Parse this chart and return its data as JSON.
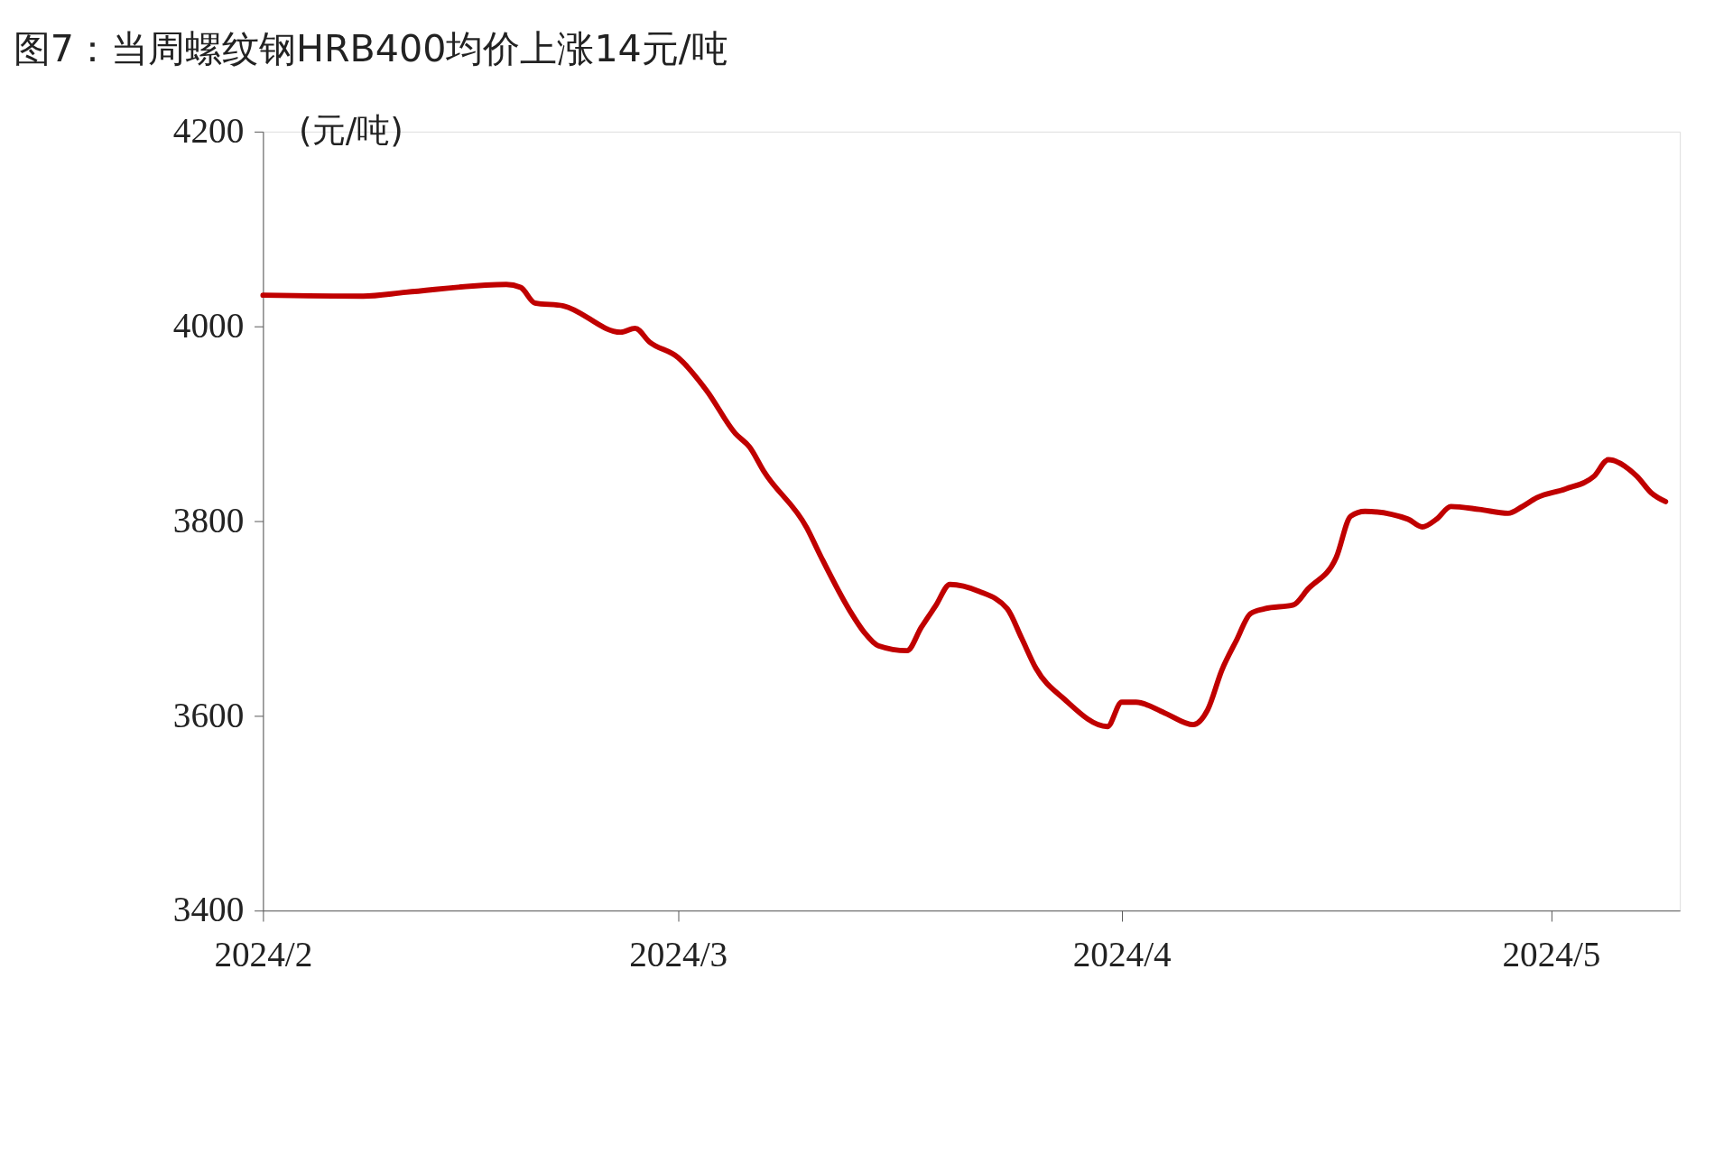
{
  "chart_data": {
    "type": "line",
    "title": "图7：当周螺纹钢HRB400均价上涨14元/吨",
    "ylabel": "(元/吨)",
    "x": [
      "2024-02-01",
      "2024-02-08",
      "2024-02-11",
      "2024-02-18",
      "2024-02-19",
      "2024-02-20",
      "2024-02-22",
      "2024-02-26",
      "2024-02-27",
      "2024-02-28",
      "2024-03-01",
      "2024-03-03",
      "2024-03-05",
      "2024-03-06",
      "2024-03-07",
      "2024-03-10",
      "2024-03-11",
      "2024-03-13",
      "2024-03-14",
      "2024-03-15",
      "2024-03-17",
      "2024-03-18",
      "2024-03-19",
      "2024-03-20",
      "2024-03-22",
      "2024-03-24",
      "2024-03-25",
      "2024-03-26",
      "2024-03-28",
      "2024-03-31",
      "2024-04-01",
      "2024-04-02",
      "2024-04-04",
      "2024-04-06",
      "2024-04-07",
      "2024-04-08",
      "2024-04-09",
      "2024-04-10",
      "2024-04-11",
      "2024-04-13",
      "2024-04-14",
      "2024-04-16",
      "2024-04-17",
      "2024-04-18",
      "2024-04-21",
      "2024-04-22",
      "2024-04-23",
      "2024-04-24",
      "2024-04-26",
      "2024-04-28",
      "2024-04-29",
      "2024-04-30",
      "2024-05-02",
      "2024-05-04",
      "2024-05-05",
      "2024-05-07",
      "2024-05-08",
      "2024-05-09"
    ],
    "series": [
      {
        "color": "#c00000",
        "values": [
          4032,
          4031,
          4035,
          4043,
          4040,
          4024,
          4021,
          3994,
          3998,
          3984,
          3968,
          3934,
          3890,
          3876,
          3851,
          3793,
          3763,
          3708,
          3686,
          3672,
          3667,
          3691,
          3713,
          3735,
          3728,
          3710,
          3680,
          3649,
          3617,
          3589,
          3614,
          3614,
          3603,
          3591,
          3606,
          3647,
          3677,
          3705,
          3710,
          3714,
          3730,
          3763,
          3805,
          3810,
          3802,
          3794,
          3802,
          3815,
          3812,
          3808,
          3815,
          3824,
          3833,
          3846,
          3863,
          3846,
          3829,
          3820
        ]
      }
    ],
    "xlim": [
      "2024-02-01",
      "2024-05-10"
    ],
    "xticks": [
      {
        "value": "2024-02-01",
        "label": "2024/2"
      },
      {
        "value": "2024-03-01",
        "label": "2024/3"
      },
      {
        "value": "2024-04-01",
        "label": "2024/4"
      },
      {
        "value": "2024-05-01",
        "label": "2024/5"
      }
    ],
    "ylim": [
      3400,
      4200
    ],
    "yticks": [
      3400,
      3600,
      3800,
      4000,
      4200
    ],
    "grid": false,
    "marker": "none",
    "line_style": "solid"
  }
}
